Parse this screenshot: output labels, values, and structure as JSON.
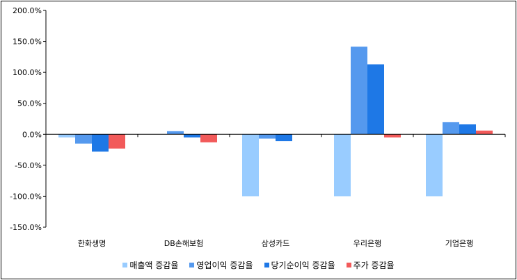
{
  "chart_data": {
    "type": "bar",
    "categories": [
      "한화생명",
      "DB손해보험",
      "삼성카드",
      "우리은행",
      "기업은행"
    ],
    "series": [
      {
        "name": "매출액 증감율",
        "color": "#99ccff",
        "values": [
          -5.0,
          0.0,
          -100.0,
          -100.0,
          -100.0
        ]
      },
      {
        "name": "영업이익 증감율",
        "color": "#5599ee",
        "values": [
          -15.0,
          5.0,
          -7.0,
          141.5,
          19.5
        ]
      },
      {
        "name": "당기순이익 증감율",
        "color": "#1e78e6",
        "values": [
          -28.0,
          -5.0,
          -11.0,
          113.0,
          16.0
        ]
      },
      {
        "name": "주가 증감율",
        "color": "#f25a5a",
        "values": [
          -23.0,
          -13.0,
          0.0,
          -5.0,
          6.0
        ]
      }
    ],
    "y_ticks": [
      "200.0%",
      "150.0%",
      "100.0%",
      "50.0%",
      "0.0%",
      "-50.0%",
      "-100.0%",
      "-150.0%"
    ],
    "ylim": [
      -150,
      200
    ],
    "grid": false,
    "legend_position": "bottom",
    "title": "",
    "xlabel": "",
    "ylabel": ""
  }
}
